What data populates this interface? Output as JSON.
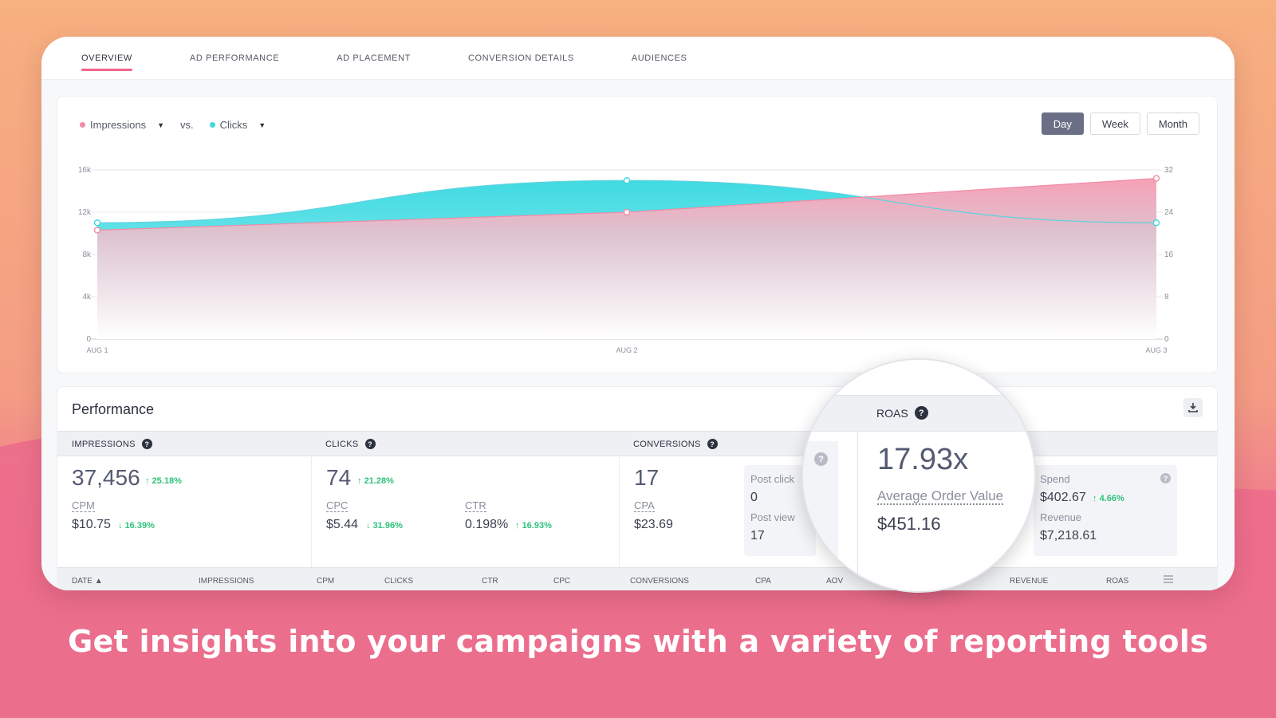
{
  "tabs": [
    "OVERVIEW",
    "AD PERFORMANCE",
    "AD PLACEMENT",
    "CONVERSION DETAILS",
    "AUDIENCES"
  ],
  "legend": {
    "series1": "Impressions",
    "vs": "vs.",
    "series2": "Clicks"
  },
  "range_buttons": [
    "Day",
    "Week",
    "Month"
  ],
  "colors": {
    "impressions": "#f48aa6",
    "clicks": "#40d9e0",
    "accent": "#f0678a",
    "positive": "#2ec27a"
  },
  "chart_data": {
    "type": "area",
    "categories": [
      "AUG 1",
      "AUG 2",
      "AUG 3"
    ],
    "series": [
      {
        "name": "Impressions",
        "values": [
          10300,
          12000,
          15200
        ],
        "axis": "left"
      },
      {
        "name": "Clicks",
        "values": [
          22,
          30,
          22
        ],
        "axis": "right"
      }
    ],
    "y_left_ticks": [
      "0",
      "4k",
      "8k",
      "12k",
      "16k"
    ],
    "y_right_ticks": [
      "0",
      "8",
      "16",
      "24",
      "32"
    ],
    "ylim_left": [
      0,
      16000
    ],
    "ylim_right": [
      0,
      32
    ],
    "grid": true
  },
  "performance": {
    "title": "Performance",
    "impressions": {
      "header": "IMPRESSIONS",
      "value": "37,456",
      "change": "25.18%",
      "sub_label": "CPM",
      "sub_value": "$10.75",
      "sub_change": "16.39%"
    },
    "clicks": {
      "header": "CLICKS",
      "value": "74",
      "change": "21.28%",
      "cpc_label": "CPC",
      "cpc_value": "$5.44",
      "cpc_change": "31.96%",
      "ctr_label": "CTR",
      "ctr_value": "0.198%",
      "ctr_change": "16.93%"
    },
    "conversions": {
      "header": "CONVERSIONS",
      "value": "17",
      "cpa_label": "CPA",
      "cpa_value": "$23.69",
      "post_click_label": "Post click",
      "post_click_value": "0",
      "post_view_label": "Post view",
      "post_view_value": "17"
    },
    "roas": {
      "header": "ROAS",
      "value": "17.93x",
      "aov_label": "Average Order Value",
      "aov_value": "$451.16"
    },
    "spend": {
      "spend_label": "Spend",
      "spend_value": "$402.67",
      "spend_change": "4.66%",
      "revenue_label": "Revenue",
      "revenue_value": "$7,218.61"
    }
  },
  "table_headers": [
    "DATE",
    "IMPRESSIONS",
    "CPM",
    "CLICKS",
    "CTR",
    "CPC",
    "CONVERSIONS",
    "CPA",
    "AOV",
    "REVENUE",
    "ROAS"
  ],
  "tagline": "Get insights into your campaigns with a variety of reporting tools"
}
